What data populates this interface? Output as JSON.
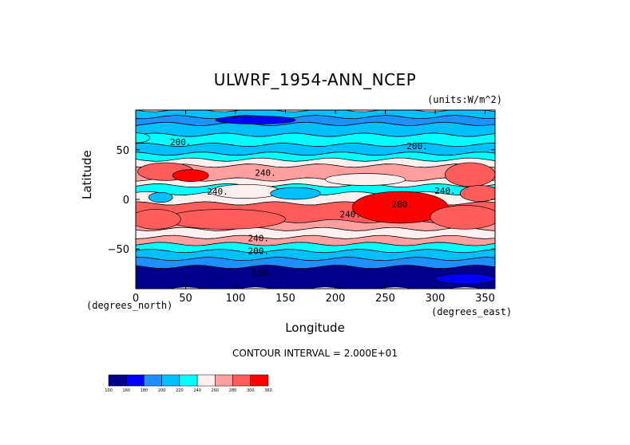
{
  "chart_data": {
    "type": "heatmap",
    "title": "ULWRF_1954-ANN_NCEP",
    "units_label": "(units:W/m^2)",
    "xlabel": "Longitude",
    "ylabel": "Latitude",
    "x_unit_label": "(degrees_east)",
    "y_unit_label": "(degrees_north)",
    "xlim": [
      0,
      360
    ],
    "ylim": [
      -90,
      90
    ],
    "x_ticks": [
      "0",
      "50",
      "100",
      "150",
      "200",
      "250",
      "300",
      "350"
    ],
    "x_tick_values": [
      0,
      50,
      100,
      150,
      200,
      250,
      300,
      350
    ],
    "y_ticks": [
      "50",
      "0",
      "−50"
    ],
    "y_tick_values": [
      50,
      0,
      -50
    ],
    "contour_interval_text": "CONTOUR INTERVAL = 2.000E+01",
    "contour_labels": [
      {
        "text": "200.",
        "lon": 45,
        "lat": 58
      },
      {
        "text": "200.",
        "lon": 282,
        "lat": 54
      },
      {
        "text": "240.",
        "lon": 130,
        "lat": 27
      },
      {
        "text": "240.",
        "lon": 82,
        "lat": 8
      },
      {
        "text": "240.",
        "lon": 310,
        "lat": 9
      },
      {
        "text": "240.",
        "lon": 215,
        "lat": -15
      },
      {
        "text": "280.",
        "lon": 267,
        "lat": -5
      },
      {
        "text": "240.",
        "lon": 123,
        "lat": -39
      },
      {
        "text": "200.",
        "lon": 123,
        "lat": -52
      },
      {
        "text": "160.",
        "lon": 127,
        "lat": -74
      }
    ],
    "colorbar": {
      "levels": [
        "100",
        "160",
        "180",
        "200",
        "220",
        "240",
        "260",
        "280",
        "300",
        "360"
      ],
      "colors": [
        "#00008b",
        "#0000ff",
        "#1e90ff",
        "#00bfff",
        "#00ffff",
        "#fff0f0",
        "#ff9f9f",
        "#ff5c5c",
        "#ff0000"
      ]
    },
    "latitude_bands": [
      {
        "lat_from": 90,
        "lat_to": 83,
        "level": 3
      },
      {
        "lat_from": 83,
        "lat_to": 76,
        "level": 2
      },
      {
        "lat_from": 76,
        "lat_to": 65,
        "level": 3
      },
      {
        "lat_from": 65,
        "lat_to": 55,
        "level": 4
      },
      {
        "lat_from": 55,
        "lat_to": 46,
        "level": 3
      },
      {
        "lat_from": 46,
        "lat_to": 40,
        "level": 4
      },
      {
        "lat_from": 40,
        "lat_to": 34,
        "level": 5
      },
      {
        "lat_from": 34,
        "lat_to": 20,
        "level": 6
      },
      {
        "lat_from": 20,
        "lat_to": 14,
        "level": 5
      },
      {
        "lat_from": 14,
        "lat_to": 6,
        "level": 4
      },
      {
        "lat_from": 6,
        "lat_to": -4,
        "level": 5
      },
      {
        "lat_from": -4,
        "lat_to": -22,
        "level": 7
      },
      {
        "lat_from": -22,
        "lat_to": -30,
        "level": 6
      },
      {
        "lat_from": -30,
        "lat_to": -38,
        "level": 5
      },
      {
        "lat_from": -38,
        "lat_to": -45,
        "level": 6
      },
      {
        "lat_from": -45,
        "lat_to": -52,
        "level": 4
      },
      {
        "lat_from": -52,
        "lat_to": -60,
        "level": 3
      },
      {
        "lat_from": -60,
        "lat_to": -68,
        "level": 2
      },
      {
        "lat_from": -68,
        "lat_to": -90,
        "level": 0
      }
    ],
    "patches": [
      {
        "lon": 30,
        "lat": 28,
        "rlon": 28,
        "rlat": 9,
        "level": 7
      },
      {
        "lon": 55,
        "lat": 24,
        "rlon": 18,
        "rlat": 6,
        "level": 8
      },
      {
        "lon": 335,
        "lat": 25,
        "rlon": 25,
        "rlat": 12,
        "level": 7
      },
      {
        "lon": 230,
        "lat": 20,
        "rlon": 40,
        "rlat": 6,
        "level": 5
      },
      {
        "lon": 110,
        "lat": 8,
        "rlon": 35,
        "rlat": 7,
        "level": 5
      },
      {
        "lon": 160,
        "lat": 6,
        "rlon": 25,
        "rlat": 6,
        "level": 3
      },
      {
        "lon": 25,
        "lat": 2,
        "rlon": 12,
        "rlat": 5,
        "level": 3
      },
      {
        "lon": 265,
        "lat": -8,
        "rlon": 48,
        "rlat": 16,
        "level": 8
      },
      {
        "lon": 90,
        "lat": -20,
        "rlon": 60,
        "rlat": 10,
        "level": 7
      },
      {
        "lon": 20,
        "lat": -20,
        "rlon": 25,
        "rlat": 10,
        "level": 7
      },
      {
        "lon": 330,
        "lat": -18,
        "rlon": 35,
        "rlat": 12,
        "level": 7
      },
      {
        "lon": 345,
        "lat": 6,
        "rlon": 20,
        "rlat": 8,
        "level": 7
      },
      {
        "lon": 120,
        "lat": 80,
        "rlon": 40,
        "rlat": 4,
        "level": 1
      },
      {
        "lon": 330,
        "lat": -80,
        "rlon": 30,
        "rlat": 5,
        "level": 1
      },
      {
        "lon": 0,
        "lat": 62,
        "rlon": 14,
        "rlat": 5,
        "level": 4
      }
    ]
  }
}
